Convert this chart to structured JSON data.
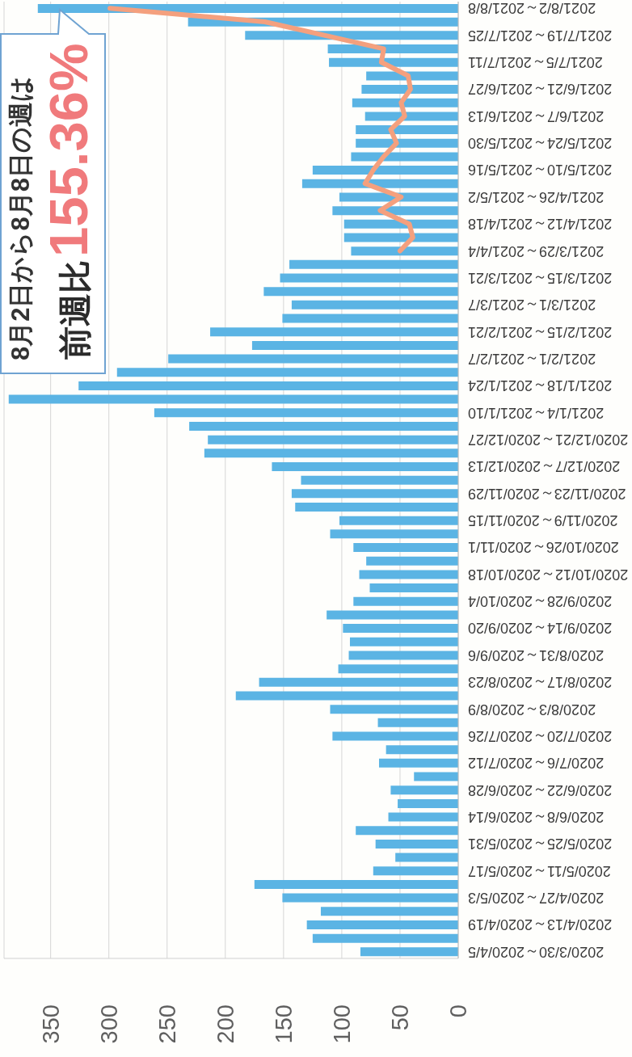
{
  "chart_data": {
    "type": "bar",
    "orientation": "horizontal",
    "categories": [
      "2021/8/2～2021/8/8",
      null,
      "2021/7/19～2021/7/25",
      null,
      "2021/7/5～2021/7/11",
      null,
      "2021/6/21～2021/6/27",
      null,
      "2021/6/7～2021/6/13",
      null,
      "2021/5/24～2021/5/30",
      null,
      "2021/5/10～2021/5/16",
      null,
      "2021/4/26～2021/5/2",
      null,
      "2021/4/12～2021/4/18",
      null,
      "2021/3/29～2021/4/4",
      null,
      "2021/3/15～2021/3/21",
      null,
      "2021/3/1～2021/3/7",
      null,
      "2021/2/15～2021/2/21",
      null,
      "2021/2/1～2021/2/7",
      null,
      "2021/1/18～2021/1/24",
      null,
      "2021/1/4～2021/1/10",
      null,
      "2020/12/21～2020/12/27",
      null,
      "2020/12/7～2020/12/13",
      null,
      "2020/11/23～2020/11/29",
      null,
      "2020/11/9～2020/11/15",
      null,
      "2020/10/26～2020/11/1",
      null,
      "2020/10/12～2020/10/18",
      null,
      "2020/9/28～2020/10/4",
      null,
      "2020/9/14～2020/9/20",
      null,
      "2020/8/31～2020/9/6",
      null,
      "2020/8/17～2020/8/23",
      null,
      "2020/8/3～2020/8/9",
      null,
      "2020/7/20～2020/7/26",
      null,
      "2020/7/6～2020/7/12",
      null,
      "2020/6/22～2020/6/28",
      null,
      "2020/6/8～2020/6/14",
      null,
      "2020/5/25～2020/5/31",
      null,
      "2020/5/11～2020/5/17",
      null,
      "2020/4/27～2020/5/3",
      null,
      "2020/4/13～2020/4/19",
      null,
      "2020/3/30～2020/4/5"
    ],
    "series": [
      {
        "color": "#5bb4e4",
        "values": [
          361,
          232,
          183,
          112,
          111,
          79,
          83,
          91,
          80,
          88,
          88,
          92,
          125,
          134,
          102,
          108,
          98,
          98,
          92,
          145,
          153,
          167,
          143,
          151,
          213,
          177,
          249,
          293,
          326,
          386,
          261,
          231,
          215,
          218,
          160,
          135,
          143,
          140,
          102,
          110,
          90,
          79,
          85,
          76,
          90,
          113,
          99,
          93,
          94,
          103,
          171,
          191,
          110,
          69,
          108,
          62,
          68,
          38,
          58,
          52,
          60,
          88,
          71,
          54,
          73,
          175,
          151,
          118,
          130,
          125,
          84
        ]
      },
      {
        "type": "line",
        "color": "#f4a07e",
        "values": [
          299,
          166,
          115,
          64,
          66,
          43,
          41,
          49,
          46,
          58,
          53,
          64,
          73,
          80,
          49,
          67,
          42,
          39,
          50,
          null,
          null,
          null,
          null,
          null,
          null,
          null,
          null,
          null,
          null,
          null,
          null,
          null,
          null,
          null,
          null,
          null,
          null,
          null,
          null,
          null,
          null,
          null,
          null,
          null,
          null,
          null,
          null,
          null,
          null,
          null,
          null,
          null,
          null,
          null,
          null,
          null,
          null,
          null,
          null,
          null,
          null,
          null,
          null,
          null,
          null,
          null,
          null,
          null,
          null,
          null,
          null
        ]
      }
    ],
    "xlim": [
      390,
      0
    ],
    "xticks": [
      0,
      50,
      100,
      150,
      200,
      250,
      300,
      350
    ],
    "grid": "x",
    "annotations": [
      "8月2日から8月8日の週は",
      "前週比",
      "155.36%"
    ]
  }
}
